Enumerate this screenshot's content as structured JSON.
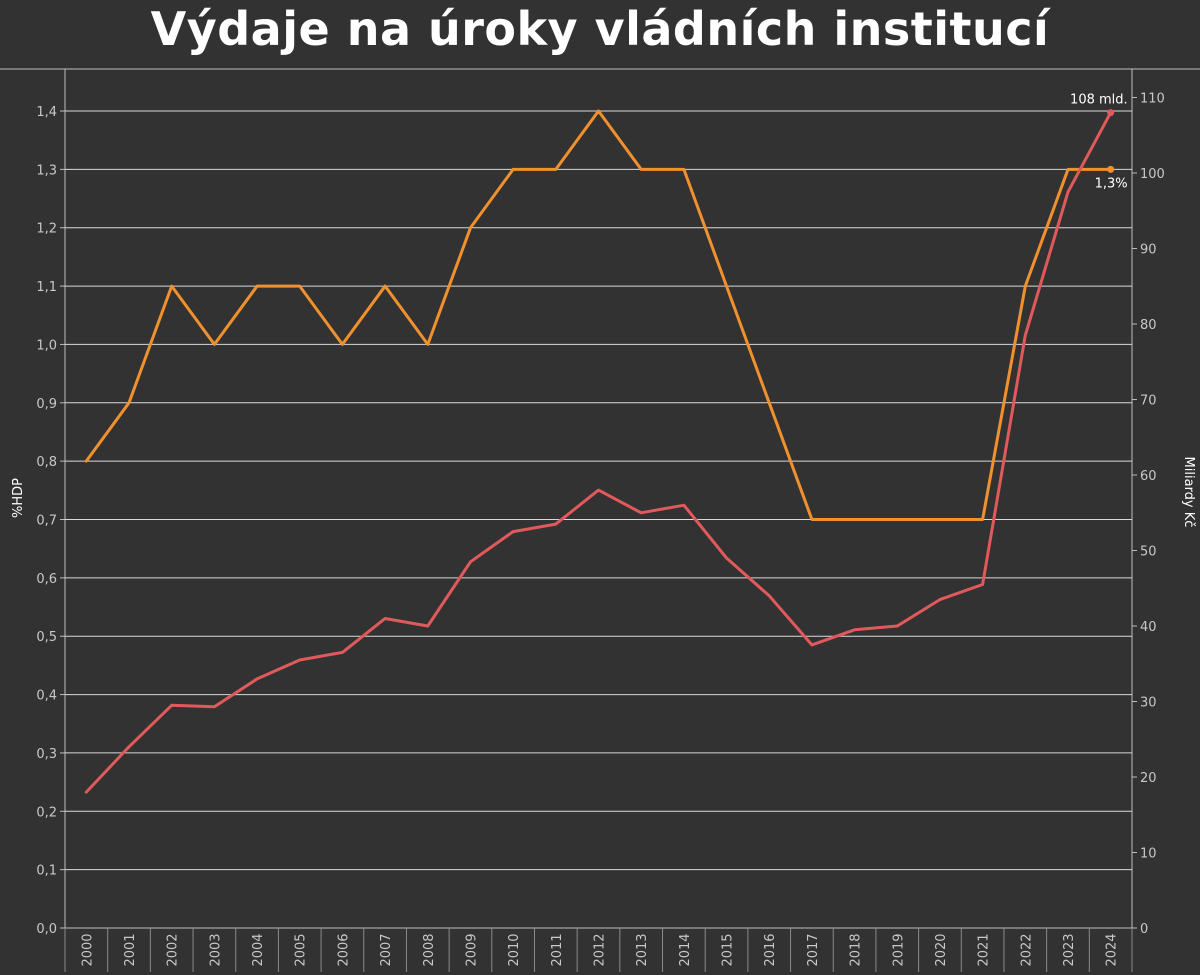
{
  "chart_data": {
    "type": "line",
    "title": "Výdaje na úroky vládních institucí",
    "x": [
      "2000",
      "2001",
      "2002",
      "2003",
      "2004",
      "2005",
      "2006",
      "2007",
      "2008",
      "2009",
      "2010",
      "2011",
      "2012",
      "2013",
      "2014",
      "2015",
      "2016",
      "2017",
      "2018",
      "2019",
      "2020",
      "2021",
      "2022",
      "2023",
      "2024"
    ],
    "ylabel": "%HDP",
    "ylabel_right": "Miliardy Kč",
    "ylim": [
      0,
      1.4
    ],
    "ylim_right": [
      0,
      110
    ],
    "y_ticks": [
      "0,0",
      "0,1",
      "0,2",
      "0,3",
      "0,4",
      "0,5",
      "0,6",
      "0,7",
      "0,8",
      "0,9",
      "1,0",
      "1,1",
      "1,2",
      "1,3",
      "1,4"
    ],
    "y_ticks_right": [
      "0",
      "10",
      "20",
      "30",
      "40",
      "50",
      "60",
      "70",
      "80",
      "90",
      "100",
      "110"
    ],
    "grid": true,
    "series": [
      {
        "axis": "left",
        "color": "#f0912e",
        "values": [
          0.8,
          0.9,
          1.1,
          1.0,
          1.1,
          1.1,
          1.0,
          1.1,
          1.0,
          1.2,
          1.3,
          1.3,
          1.4,
          1.3,
          1.3,
          1.1,
          0.9,
          0.7,
          0.7,
          0.7,
          0.7,
          0.7,
          1.1,
          1.3,
          1.3
        ],
        "end_label": "1,3%"
      },
      {
        "axis": "right",
        "color": "#e05a5c",
        "values": [
          18,
          24,
          29.5,
          29.3,
          33,
          35.5,
          36.5,
          41,
          40,
          48.5,
          52.5,
          53.5,
          58,
          55,
          56,
          49,
          44,
          37.5,
          39.5,
          40,
          43.5,
          45.5,
          78.5,
          97.5,
          108
        ],
        "end_label": "108 mld."
      }
    ]
  }
}
